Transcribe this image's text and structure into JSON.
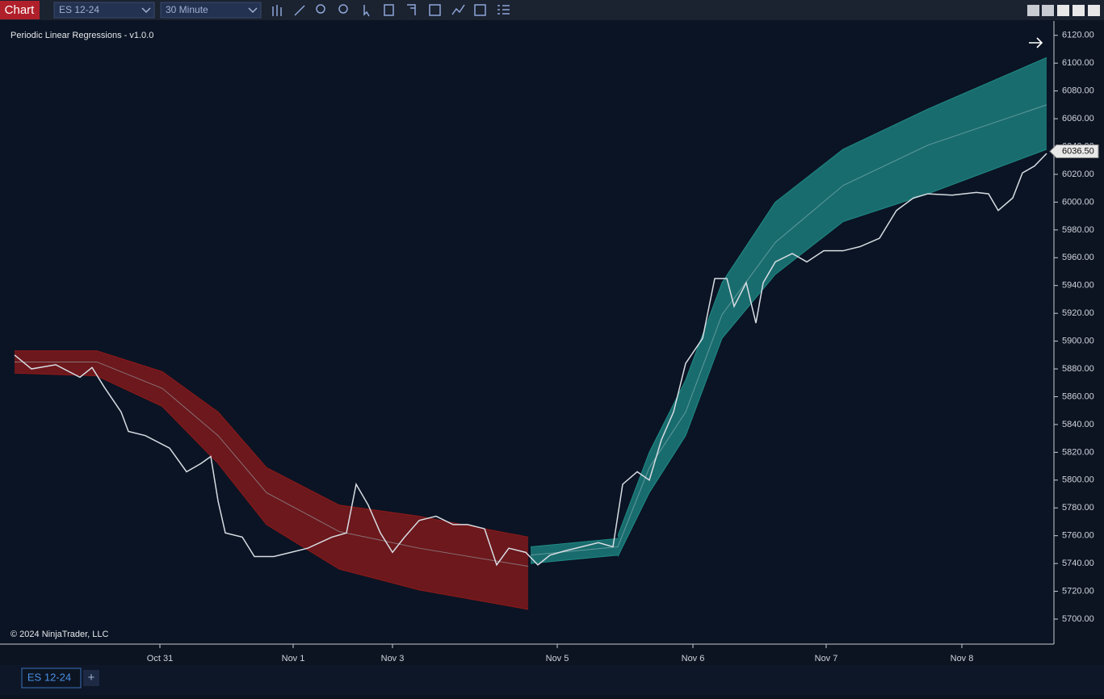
{
  "toolbar": {
    "chart_button": "Chart",
    "instrument": "ES 12-24",
    "interval": "30 Minute"
  },
  "chart_data": {
    "type": "line",
    "title": "Periodic Linear Regressions - v1.0.0",
    "copyright": "© 2024 NinjaTrader, LLC",
    "xlim": [
      -2,
      429
    ],
    "xticks": [
      {
        "value": 60,
        "label": "Oct 31"
      },
      {
        "value": 115,
        "label": "Nov 1"
      },
      {
        "value": 156,
        "label": "Nov 3"
      },
      {
        "value": 224,
        "label": "Nov 5"
      },
      {
        "value": 280,
        "label": "Nov 6"
      },
      {
        "value": 335,
        "label": "Nov 7"
      },
      {
        "value": 391,
        "label": "Nov 8"
      }
    ],
    "ylim": [
      5682,
      6128
    ],
    "yticks": [
      {
        "value": 5700,
        "label": "5700.00"
      },
      {
        "value": 5720,
        "label": "5720.00"
      },
      {
        "value": 5740,
        "label": "5740.00"
      },
      {
        "value": 5760,
        "label": "5760.00"
      },
      {
        "value": 5780,
        "label": "5780.00"
      },
      {
        "value": 5800,
        "label": "5800.00"
      },
      {
        "value": 5820,
        "label": "5820.00"
      },
      {
        "value": 5840,
        "label": "5840.00"
      },
      {
        "value": 5860,
        "label": "5860.00"
      },
      {
        "value": 5880,
        "label": "5880.00"
      },
      {
        "value": 5900,
        "label": "5900.00"
      },
      {
        "value": 5920,
        "label": "5920.00"
      },
      {
        "value": 5940,
        "label": "5940.00"
      },
      {
        "value": 5960,
        "label": "5960.00"
      },
      {
        "value": 5980,
        "label": "5980.00"
      },
      {
        "value": 6000,
        "label": "6000.00"
      },
      {
        "value": 6020,
        "label": "6020.00"
      },
      {
        "value": 6040,
        "label": "6040.00"
      },
      {
        "value": 6060,
        "label": "6060.00"
      },
      {
        "value": 6080,
        "label": "6080.00"
      },
      {
        "value": 6100,
        "label": "6100.00"
      },
      {
        "value": 6120,
        "label": "6120.00"
      }
    ],
    "last_price": {
      "value": 6036.5,
      "label": "6036.50"
    },
    "price": {
      "color": "#d8dde4",
      "x": [
        0,
        7,
        17,
        27,
        32,
        37,
        44,
        47,
        54,
        64,
        71,
        77,
        81,
        84,
        87,
        94,
        99,
        107,
        114,
        121,
        131,
        137,
        141,
        146,
        151,
        156,
        161,
        167,
        174,
        181,
        187,
        194,
        199,
        204,
        211,
        216,
        221,
        227,
        234,
        241,
        247,
        251,
        257,
        262,
        267,
        272,
        277,
        284,
        289,
        294,
        297,
        302,
        306,
        309,
        314,
        321,
        327,
        334,
        342,
        349,
        357,
        364,
        371,
        377,
        387,
        397,
        402,
        406,
        412,
        416,
        421,
        426
      ],
      "values": [
        5890,
        5880,
        5883,
        5874,
        5881,
        5867,
        5849,
        5835,
        5832,
        5823,
        5806,
        5812,
        5817,
        5785,
        5762,
        5759,
        5745,
        5745,
        5748,
        5751,
        5759,
        5762,
        5797,
        5782,
        5762,
        5748,
        5759,
        5771,
        5774,
        5768,
        5768,
        5765,
        5739,
        5751,
        5748,
        5739,
        5746,
        5749,
        5752,
        5755,
        5752,
        5797,
        5806,
        5800,
        5829,
        5849,
        5884,
        5902,
        5945,
        5945,
        5925,
        5942,
        5913,
        5942,
        5957,
        5963,
        5957,
        5965,
        5965,
        5968,
        5974,
        5994,
        6003,
        6006,
        6005,
        6007,
        6006,
        5994,
        6003,
        6021,
        6026,
        6035
      ]
    },
    "channels": [
      {
        "color": "#8e1a1a",
        "x": [
          0,
          34,
          61,
          84,
          104,
          134,
          167,
          212
        ],
        "upper": [
          5893,
          5893,
          5878,
          5849,
          5809,
          5782,
          5774,
          5759
        ],
        "mid": [
          5885,
          5885,
          5866,
          5832,
          5791,
          5763,
          5751,
          5738
        ],
        "lower": [
          5877,
          5875,
          5853,
          5812,
          5768,
          5736,
          5721,
          5707
        ]
      },
      {
        "color": "#1f8a86",
        "x": [
          213,
          249
        ],
        "upper": [
          5752,
          5758
        ],
        "mid": [
          5746,
          5752
        ],
        "lower": [
          5740,
          5746
        ]
      },
      {
        "color": "#1f8a86",
        "x": [
          249,
          262,
          277,
          292,
          314,
          342,
          377,
          426
        ],
        "upper": [
          5760,
          5820,
          5872,
          5942,
          6000,
          6038,
          6067,
          6104
        ],
        "mid": [
          5752,
          5809,
          5849,
          5919,
          5971,
          6012,
          6041,
          6070
        ],
        "lower": [
          5745,
          5791,
          5832,
          5902,
          5948,
          5986,
          6006,
          6038
        ]
      }
    ]
  },
  "tab": {
    "label": "ES 12-24",
    "add": "+"
  }
}
